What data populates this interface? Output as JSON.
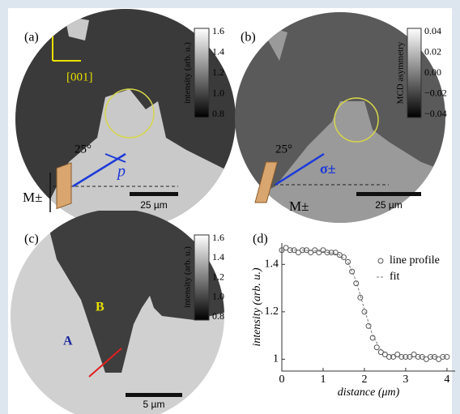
{
  "panels": [
    {
      "label": "(a)",
      "axis_label": "[001]",
      "angle": "25°",
      "polarization": "p",
      "magnetization": "M±",
      "scale_bar": "25 µm",
      "colorbar_label": "intensity (arb. u.)",
      "colorbar_ticks": [
        "1.6",
        "1.4",
        "1.2",
        "1.0",
        "0.8"
      ]
    },
    {
      "label": "(b)",
      "angle": "25°",
      "polarization": "σ±",
      "magnetization": "M±",
      "scale_bar": "25 µm",
      "colorbar_label": "MCD asymmetry",
      "colorbar_ticks": [
        "0.04",
        "0.02",
        "0.00",
        "−0.02",
        "−0.04"
      ]
    },
    {
      "label": "(c)",
      "domain_a": "A",
      "domain_b": "B",
      "scale_bar": "5 µm",
      "colorbar_label": "intensity (arb. u.)",
      "colorbar_ticks": [
        "1.6",
        "1.4",
        "1.2",
        "1.0",
        "0.8"
      ]
    }
  ],
  "chart_data": {
    "type": "scatter",
    "label": "(d)",
    "x_label": "distance (μm)",
    "y_label": "intensity (arb. u.)",
    "xlim": [
      0,
      4.1
    ],
    "ylim": [
      0.95,
      1.49
    ],
    "xticks": [
      0,
      1,
      2,
      3,
      4
    ],
    "yticks": [
      1,
      1.2,
      1.4
    ],
    "series": [
      {
        "name": "line profile",
        "type": "scatter",
        "color": "#555555",
        "x": [
          0,
          0.1,
          0.2,
          0.3,
          0.4,
          0.5,
          0.6,
          0.7,
          0.8,
          0.9,
          1,
          1.1,
          1.2,
          1.3,
          1.4,
          1.5,
          1.6,
          1.7,
          1.8,
          1.9,
          2,
          2.1,
          2.2,
          2.3,
          2.4,
          2.5,
          2.6,
          2.7,
          2.8,
          2.9,
          3,
          3.1,
          3.2,
          3.3,
          3.4,
          3.5,
          3.6,
          3.7,
          3.8,
          3.9,
          4
        ],
        "values": [
          1.46,
          1.47,
          1.46,
          1.46,
          1.45,
          1.46,
          1.46,
          1.45,
          1.46,
          1.45,
          1.46,
          1.45,
          1.45,
          1.45,
          1.44,
          1.43,
          1.41,
          1.37,
          1.32,
          1.26,
          1.2,
          1.14,
          1.09,
          1.05,
          1.03,
          1.02,
          1.01,
          1.01,
          1.02,
          1.01,
          1.01,
          1.01,
          1.02,
          1.01,
          1.01,
          1,
          1.01,
          1.01,
          1,
          1.01,
          1.01
        ]
      },
      {
        "name": "fit",
        "type": "line",
        "color": "#777777",
        "x": [
          0,
          0.5,
          1,
          1.4,
          1.6,
          1.8,
          2,
          2.2,
          2.4,
          2.6,
          3,
          4
        ],
        "values": [
          1.46,
          1.46,
          1.455,
          1.44,
          1.41,
          1.33,
          1.21,
          1.1,
          1.04,
          1.015,
          1.01,
          1.01
        ]
      }
    ]
  }
}
